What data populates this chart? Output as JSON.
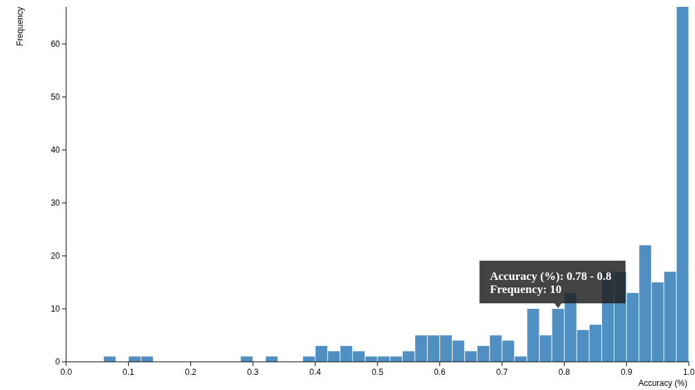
{
  "chart_data": {
    "type": "histogram",
    "xlabel": "Accuracy (%)",
    "ylabel": "Frequency",
    "color": "#4f8fc2",
    "bins": [
      0,
      0.02,
      0.04,
      0.06,
      0.08,
      0.1,
      0.12,
      0.14,
      0.16,
      0.18,
      0.2,
      0.22,
      0.24,
      0.26,
      0.28,
      0.3,
      0.32,
      0.34,
      0.36,
      0.38,
      0.4,
      0.42,
      0.44,
      0.46,
      0.48,
      0.5,
      0.52,
      0.54,
      0.56,
      0.58,
      0.6,
      0.62,
      0.64,
      0.66,
      0.68,
      0.7,
      0.72,
      0.74,
      0.76,
      0.78,
      0.8,
      0.82,
      0.84,
      0.86,
      0.88,
      0.9,
      0.92,
      0.94,
      0.96,
      0.98,
      1.0
    ],
    "values": [
      0,
      0,
      0,
      1,
      0,
      1,
      1,
      0,
      0,
      0,
      0,
      0,
      0,
      0,
      1,
      0,
      1,
      0,
      0,
      1,
      3,
      2,
      3,
      2,
      1,
      1,
      1,
      2,
      5,
      5,
      5,
      4,
      2,
      3,
      5,
      4,
      1,
      10,
      5,
      10,
      13,
      6,
      7,
      17,
      17,
      13,
      22,
      15,
      17,
      67
    ],
    "xlim": [
      0,
      1
    ],
    "xticks": [
      {
        "value": 0,
        "label": "0.0"
      },
      0.1,
      0.2,
      0.3,
      0.4,
      0.5,
      0.6,
      0.7,
      0.8,
      0.9,
      {
        "value": 1,
        "label": "1.0"
      }
    ],
    "ylim": [
      0,
      67
    ],
    "yticks": [
      0,
      10,
      20,
      30,
      40,
      50,
      60
    ],
    "grid": false,
    "annotations": [
      {
        "text": "Accuracy (%): 0.78 - 0.8\nFrequency: 10",
        "x": 0.79,
        "y": 10
      }
    ]
  }
}
